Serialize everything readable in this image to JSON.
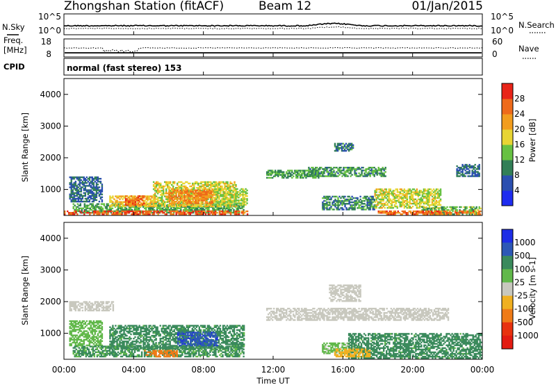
{
  "header": {
    "station": "Zhongshan Station (fitACF)",
    "beam": "Beam 12",
    "date": "01/Jan/2015"
  },
  "params": {
    "nsky_label": "N.Sky",
    "nsky_ticks": [
      "10^5",
      "10^0"
    ],
    "nsearch_label": "N.Search",
    "nsearch_ticks": [
      "10^5",
      "10^0"
    ],
    "freq_label": "Freq.",
    "freq_unit": "[MHz]",
    "freq_ticks": [
      "18",
      "8"
    ],
    "nave_label": "Nave",
    "nave_ticks": [
      "60",
      "0"
    ],
    "cpid_label": "CPID",
    "cpid_text": "normal (fast stereo) 153"
  },
  "chart_data": [
    {
      "type": "heatmap",
      "name": "power",
      "ylabel": "Slant Range [km]",
      "ylim": [
        180,
        4500
      ],
      "yticks": [
        "1000",
        "2000",
        "3000",
        "4000"
      ],
      "colorbar": {
        "label": "Power [dB]",
        "range": [
          0,
          32
        ],
        "ticks": [
          "4",
          "8",
          "12",
          "16",
          "20",
          "24",
          "28"
        ],
        "colors": [
          "#1e2cf0",
          "#2b4fb0",
          "#327f57",
          "#67c142",
          "#e8d533",
          "#f29d1e",
          "#ee6a1a",
          "#e82418"
        ]
      },
      "echo_regions": [
        {
          "t0": 0.3,
          "t1": 2.2,
          "r0": 600,
          "r1": 1400,
          "db": 8
        },
        {
          "t0": 0.5,
          "t1": 10.3,
          "r0": 250,
          "r1": 560,
          "db": 12
        },
        {
          "t0": 2.6,
          "t1": 5.2,
          "r0": 450,
          "r1": 800,
          "db": 20
        },
        {
          "t0": 3.5,
          "t1": 4.6,
          "r0": 500,
          "r1": 800,
          "db": 26
        },
        {
          "t0": 5.1,
          "t1": 9.9,
          "r0": 450,
          "r1": 1250,
          "db": 18
        },
        {
          "t0": 6.0,
          "t1": 8.5,
          "r0": 550,
          "r1": 1000,
          "db": 24
        },
        {
          "t0": 0.0,
          "t1": 10.5,
          "r0": 200,
          "r1": 300,
          "db": 27
        },
        {
          "t0": 8.7,
          "t1": 10.5,
          "r0": 500,
          "r1": 1000,
          "db": 16
        },
        {
          "t0": 11.6,
          "t1": 14.6,
          "r0": 1350,
          "r1": 1600,
          "db": 12
        },
        {
          "t0": 14.0,
          "t1": 18.4,
          "r0": 1400,
          "r1": 1700,
          "db": 11
        },
        {
          "t0": 15.5,
          "t1": 16.6,
          "r0": 2200,
          "r1": 2450,
          "db": 9
        },
        {
          "t0": 14.8,
          "t1": 17.8,
          "r0": 350,
          "r1": 800,
          "db": 10
        },
        {
          "t0": 17.8,
          "t1": 21.6,
          "r0": 400,
          "r1": 1000,
          "db": 17
        },
        {
          "t0": 20.5,
          "t1": 23.9,
          "r0": 200,
          "r1": 450,
          "db": 13
        },
        {
          "t0": 18.0,
          "t1": 23.9,
          "r0": 200,
          "r1": 300,
          "db": 26
        },
        {
          "t0": 22.5,
          "t1": 23.8,
          "r0": 1400,
          "r1": 1800,
          "db": 8
        }
      ]
    },
    {
      "type": "heatmap",
      "name": "velocity",
      "ylabel": "Slant Range [km]",
      "ylim": [
        180,
        4500
      ],
      "yticks": [
        "1000",
        "2000",
        "3000",
        "4000"
      ],
      "colorbar": {
        "label": "Velocity [m s-1]",
        "ticks": [
          "1000",
          "500",
          "100",
          "25",
          "-25",
          "-100",
          "-500",
          "-1000"
        ],
        "colors": [
          "#1d2de6",
          "#2d58b6",
          "#3a8a5c",
          "#61b84a",
          "#c8c8be",
          "#f0b021",
          "#ef7b17",
          "#e8320f",
          "#e31b12"
        ]
      },
      "echo_regions": [
        {
          "t0": 0.3,
          "t1": 2.2,
          "r0": 600,
          "r1": 1400,
          "vel": 60
        },
        {
          "t0": 0.5,
          "t1": 10.3,
          "r0": 250,
          "r1": 600,
          "vel": 120
        },
        {
          "t0": 2.6,
          "t1": 10.3,
          "r0": 500,
          "r1": 1250,
          "vel": 150
        },
        {
          "t0": 6.5,
          "t1": 8.8,
          "r0": 600,
          "r1": 1050,
          "vel": 800
        },
        {
          "t0": 4.6,
          "t1": 6.5,
          "r0": 250,
          "r1": 450,
          "vel": -300
        },
        {
          "t0": 0.3,
          "t1": 2.8,
          "r0": 1700,
          "r1": 2000,
          "vel": 10
        },
        {
          "t0": 11.6,
          "t1": 22.0,
          "r0": 1400,
          "r1": 1800,
          "vel": 0
        },
        {
          "t0": 15.2,
          "t1": 17.0,
          "r0": 2000,
          "r1": 2500,
          "vel": 5
        },
        {
          "t0": 14.8,
          "t1": 16.8,
          "r0": 350,
          "r1": 700,
          "vel": 40
        },
        {
          "t0": 16.3,
          "t1": 23.9,
          "r0": 200,
          "r1": 1000,
          "vel": 150
        },
        {
          "t0": 15.5,
          "t1": 17.5,
          "r0": 250,
          "r1": 500,
          "vel": -60
        }
      ]
    }
  ],
  "xaxis": {
    "label": "Time UT",
    "ticks": [
      "00:00",
      "04:00",
      "08:00",
      "12:00",
      "16:00",
      "20:00",
      "00:00"
    ]
  }
}
